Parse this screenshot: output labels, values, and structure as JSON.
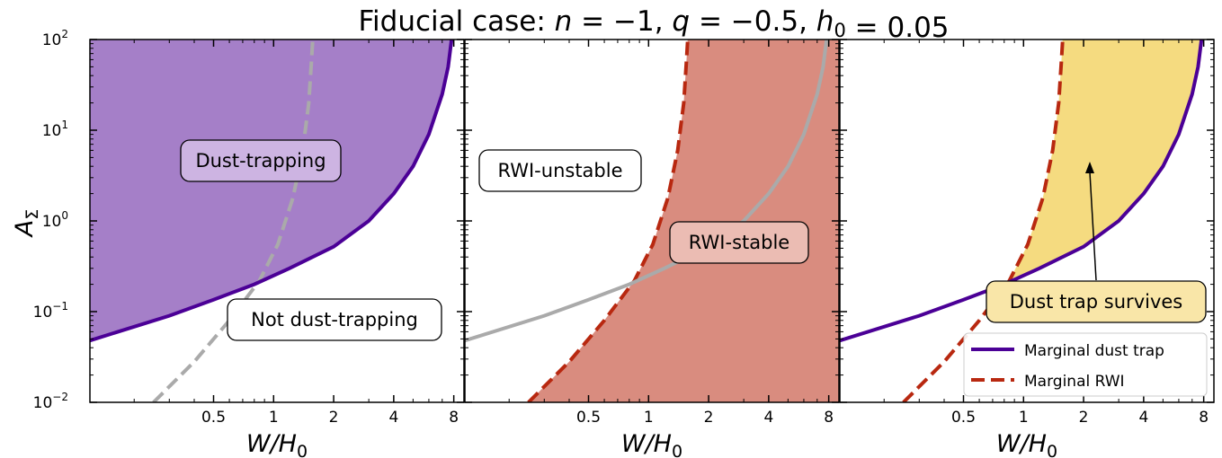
{
  "figure": {
    "title": "Fiducial case: n = −1, q = −0.5, h₀ = 0.05",
    "title_parts": [
      "Fiducial case: ",
      "n",
      " = −1, ",
      "q",
      " = −0.5, ",
      "h",
      "0",
      " = 0.05"
    ],
    "ylabel_main": "A",
    "ylabel_sub": "Σ",
    "xlabel_main": "W/H",
    "xlabel_sub": "0",
    "colors": {
      "dust_fill": "#a57fc8",
      "dust_line": "#4b0096",
      "rwi_fill": "#d98c7f",
      "rwi_line": "#b82810",
      "survive_fill": "#f5db80",
      "grey_curve": "#aaaaaa"
    }
  },
  "chart_data": [
    {
      "type": "area",
      "panel": "left",
      "xscale": "log",
      "yscale": "log",
      "xlim": [
        0.12,
        9.0
      ],
      "ylim": [
        0.01,
        100
      ],
      "x_ticks": [
        0.5,
        1,
        2,
        4,
        8
      ],
      "x_tick_labels": [
        "0.5",
        "1",
        "2",
        "4",
        "8"
      ],
      "y_ticks": [
        0.01,
        0.1,
        1,
        10,
        100
      ],
      "y_tick_labels": [
        [
          "10",
          "−2"
        ],
        [
          "10",
          "−1"
        ],
        [
          "10",
          "0"
        ],
        [
          "10",
          "1"
        ],
        [
          "10",
          "2"
        ]
      ],
      "series": [
        {
          "role": "marginal-dust-trap",
          "style": "solid",
          "fill": "above",
          "x": [
            0.12,
            0.3,
            0.5,
            0.8,
            1.2,
            2,
            3,
            4,
            5,
            6,
            7,
            7.5,
            7.8
          ],
          "y": [
            0.048,
            0.09,
            0.135,
            0.2,
            0.3,
            0.52,
            1.0,
            2.0,
            4.0,
            9.0,
            25,
            50,
            100
          ]
        },
        {
          "role": "marginal-rwi",
          "style": "dashed",
          "x": [
            0.25,
            0.4,
            0.6,
            0.85,
            1.05,
            1.25,
            1.4,
            1.5,
            1.55,
            1.57
          ],
          "y": [
            0.01,
            0.028,
            0.08,
            0.22,
            0.55,
            1.8,
            6.0,
            20,
            60,
            100
          ]
        }
      ],
      "annotations": [
        "Dust-trapping",
        "Not dust-trapping"
      ]
    },
    {
      "type": "area",
      "panel": "middle",
      "xscale": "log",
      "yscale": "log",
      "xlim": [
        0.12,
        9.0
      ],
      "ylim": [
        0.01,
        100
      ],
      "x_ticks": [
        0.5,
        1,
        2,
        4,
        8
      ],
      "x_tick_labels": [
        "0.5",
        "1",
        "2",
        "4",
        "8"
      ],
      "series": [
        {
          "role": "marginal-rwi",
          "style": "dashed",
          "fill": "right",
          "x": [
            0.25,
            0.4,
            0.6,
            0.85,
            1.05,
            1.25,
            1.4,
            1.5,
            1.55,
            1.57
          ],
          "y": [
            0.01,
            0.028,
            0.08,
            0.22,
            0.55,
            1.8,
            6.0,
            20,
            60,
            100
          ]
        },
        {
          "role": "marginal-dust-trap",
          "style": "solid",
          "x": [
            0.12,
            0.3,
            0.5,
            0.8,
            1.2,
            2,
            3,
            4,
            5,
            6,
            7,
            7.5,
            7.8
          ],
          "y": [
            0.048,
            0.09,
            0.135,
            0.2,
            0.3,
            0.52,
            1.0,
            2.0,
            4.0,
            9.0,
            25,
            50,
            100
          ]
        }
      ],
      "annotations": [
        "RWI-unstable",
        "RWI-stable"
      ]
    },
    {
      "type": "area",
      "panel": "right",
      "xscale": "log",
      "yscale": "log",
      "xlim": [
        0.12,
        9.0
      ],
      "ylim": [
        0.01,
        100
      ],
      "x_ticks": [
        0.5,
        1,
        2,
        4,
        8
      ],
      "x_tick_labels": [
        "0.5",
        "1",
        "2",
        "4",
        "8"
      ],
      "series": [
        {
          "name": "Marginal dust trap",
          "style": "solid",
          "x": [
            0.12,
            0.3,
            0.5,
            0.8,
            1.2,
            2,
            3,
            4,
            5,
            6,
            7,
            7.5,
            7.8
          ],
          "y": [
            0.048,
            0.09,
            0.135,
            0.2,
            0.3,
            0.52,
            1.0,
            2.0,
            4.0,
            9.0,
            25,
            50,
            100
          ]
        },
        {
          "name": "Marginal RWI",
          "style": "dashed",
          "x": [
            0.25,
            0.4,
            0.6,
            0.85,
            1.05,
            1.25,
            1.4,
            1.5,
            1.55,
            1.57
          ],
          "y": [
            0.01,
            0.028,
            0.08,
            0.22,
            0.55,
            1.8,
            6.0,
            20,
            60,
            100
          ]
        }
      ],
      "fill": "between",
      "annotations": [
        "Dust trap survives"
      ],
      "arrow": {
        "from": [
          3.3,
          0.25
        ],
        "to": [
          2.6,
          4.5
        ]
      },
      "legend": {
        "position": "lower-right",
        "entries": [
          "Marginal dust trap",
          "Marginal RWI"
        ]
      }
    }
  ]
}
